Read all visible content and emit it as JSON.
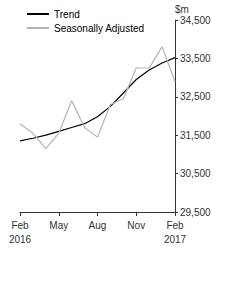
{
  "chart_data": {
    "type": "line",
    "y_label": "$m",
    "categories": [
      "Feb\n2016",
      null,
      null,
      "May",
      null,
      null,
      "Aug",
      null,
      null,
      "Nov",
      null,
      null,
      "Feb\n2017"
    ],
    "series": [
      {
        "name": "Trend",
        "color": "#000000",
        "values": [
          31350,
          31420,
          31500,
          31600,
          31700,
          31800,
          31980,
          32250,
          32600,
          32950,
          33200,
          33380,
          33520
        ]
      },
      {
        "name": "Seasonally Adjusted",
        "color": "#b3b3b3",
        "values": [
          31800,
          31550,
          31150,
          31550,
          32400,
          31700,
          31450,
          32300,
          32450,
          33250,
          33250,
          33800,
          32900
        ]
      }
    ],
    "ylim": [
      29500,
      34500
    ],
    "yticks": [
      29500,
      30500,
      31500,
      32500,
      33500,
      34500
    ],
    "grid": false,
    "legend": "top-left"
  }
}
